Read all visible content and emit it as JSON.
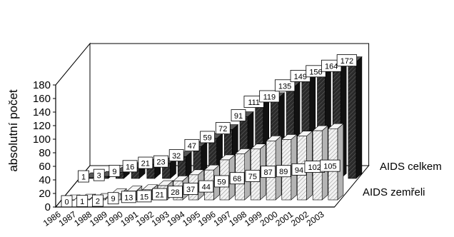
{
  "chart_data": {
    "type": "bar",
    "ylabel": "absolutní počet",
    "ylim": [
      0,
      180
    ],
    "yticks": [
      0,
      20,
      40,
      60,
      80,
      100,
      120,
      140,
      160,
      180
    ],
    "grid": false,
    "legend": "right",
    "categories": [
      "1986",
      "1987",
      "1988",
      "1989",
      "1990",
      "1991",
      "1992",
      "1993",
      "1994",
      "1995",
      "1996",
      "1997",
      "1998",
      "1999",
      "2000",
      "2001",
      "2002",
      "2003"
    ],
    "series": [
      {
        "name": "AIDS celkem",
        "values": [
          1,
          3,
          9,
          16,
          21,
          23,
          32,
          47,
          59,
          72,
          91,
          111,
          119,
          135,
          149,
          156,
          164,
          172
        ],
        "labels": [
          "1",
          "3",
          "9",
          "16",
          "21",
          "23",
          "32",
          "47",
          "59",
          "72",
          "91",
          "111",
          "119",
          "135",
          "149",
          "156",
          "164",
          "172"
        ]
      },
      {
        "name": "AIDS zemřeli",
        "values": [
          0,
          1,
          2,
          9,
          13,
          15,
          21,
          28,
          37,
          44,
          59,
          68,
          75,
          87,
          89,
          94,
          102,
          105
        ],
        "labels": [
          "0",
          "1",
          "2",
          "9",
          "13",
          "15",
          "21",
          "28",
          "37",
          "44",
          "59",
          "68",
          "75",
          "87",
          "89",
          "94",
          "102",
          "105"
        ]
      }
    ]
  },
  "colors": {
    "celkem_front": "#2a2a2a",
    "celkem_top": "#585858",
    "celkem_side": "#111111",
    "zemreli_front": "#e2e2e2",
    "zemreli_top": "#f4f4f4",
    "zemreli_side": "#b4b4b4",
    "frame": "#000000"
  }
}
